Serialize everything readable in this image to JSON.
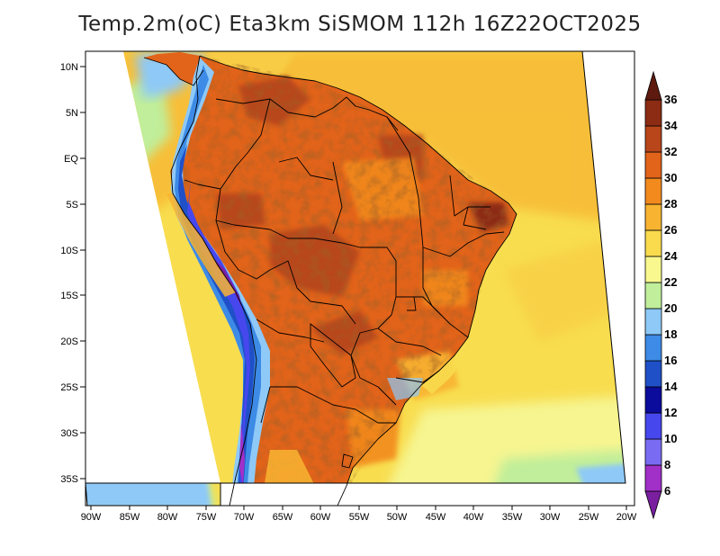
{
  "title": "Temp.2m(oC) Eta3km SiSMOM 112h 16Z22OCT2025",
  "lat_labels": [
    "10N",
    "5N",
    "EQ",
    "5S",
    "10S",
    "15S",
    "20S",
    "25S",
    "30S",
    "35S"
  ],
  "lon_labels": [
    "90W",
    "85W",
    "80W",
    "75W",
    "70W",
    "65W",
    "60W",
    "55W",
    "50W",
    "45W",
    "40W",
    "35W",
    "30W",
    "25W",
    "20W"
  ],
  "colorbar": {
    "labels": [
      "6",
      "8",
      "10",
      "12",
      "14",
      "16",
      "18",
      "20",
      "22",
      "24",
      "26",
      "28",
      "30",
      "32",
      "34",
      "36"
    ],
    "colors": [
      "#7a1fa0",
      "#a030c8",
      "#7a6cf2",
      "#4747ee",
      "#0b0b9c",
      "#1f50c8",
      "#3d8be6",
      "#8ec9f7",
      "#c0ee9a",
      "#f8f88e",
      "#fadb4d",
      "#f8b431",
      "#f28a1e",
      "#e2631a",
      "#b8461a",
      "#8c2c14",
      "#5e1a0e"
    ]
  },
  "colors": {
    "ocean_warm": "#f7ba35",
    "ocean_mid": "#f8dd4f",
    "ocean_cool": "#f6f590",
    "ocean_cold": "#8ec9f7",
    "land_hot": "#e0641b",
    "land_very_hot": "#bb4a1c",
    "andes_cold": "#3a5ee0",
    "boundary": "#000000"
  }
}
